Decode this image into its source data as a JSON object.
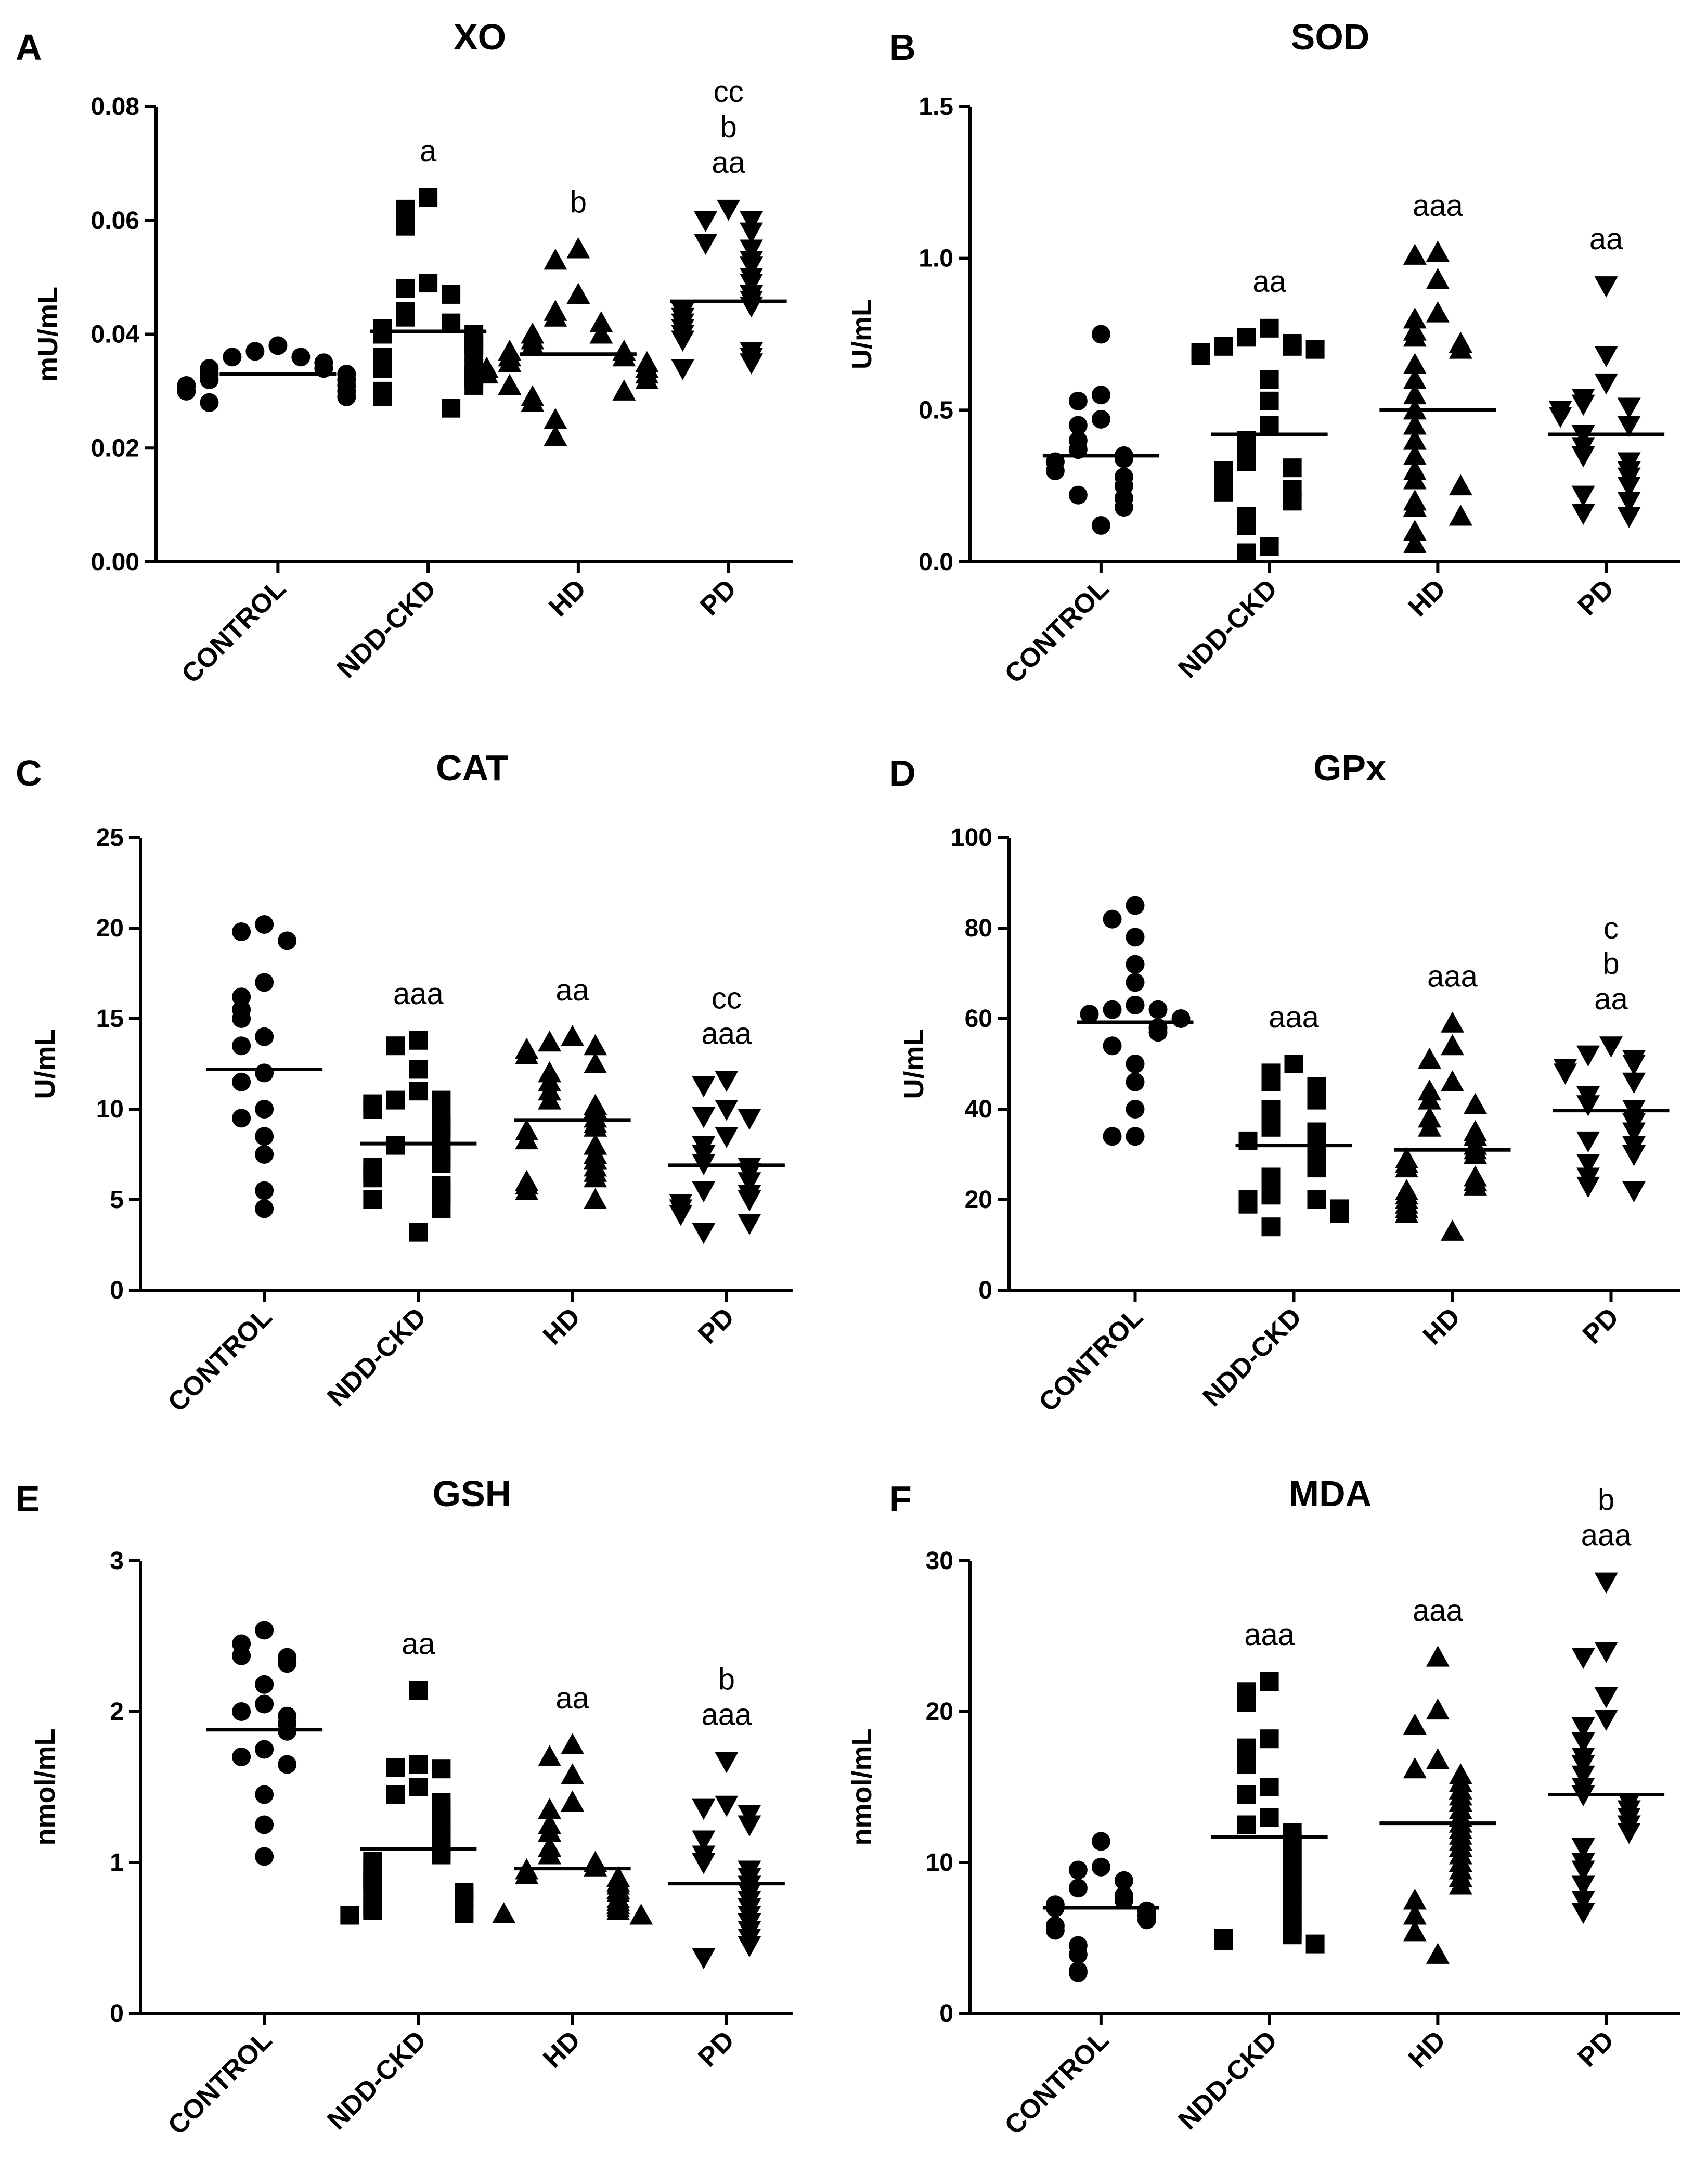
{
  "chart_data": [
    {
      "id": "A",
      "panel_letter": "A",
      "type": "scatter",
      "title": "XO",
      "ylabel": "mU/mL",
      "xlabel": "",
      "ylim": [
        0,
        0.08
      ],
      "yticks": [
        0,
        0.02,
        0.04,
        0.06,
        0.08
      ],
      "ytick_labels": [
        "0.00",
        "0.02",
        "0.04",
        "0.06",
        "0.08"
      ],
      "categories": [
        "CONTROL",
        "NDD-CKD",
        "HD",
        "PD"
      ],
      "series": [
        {
          "name": "CONTROL",
          "marker": "circle",
          "values": [
            0.038,
            0.037,
            0.036,
            0.036,
            0.035,
            0.034,
            0.034,
            0.033,
            0.033,
            0.032,
            0.032,
            0.031,
            0.031,
            0.03,
            0.03,
            0.029,
            0.028
          ],
          "mean": 0.033,
          "annotations": []
        },
        {
          "name": "NDD-CKD",
          "marker": "square",
          "values": [
            0.064,
            0.062,
            0.059,
            0.049,
            0.048,
            0.047,
            0.044,
            0.043,
            0.042,
            0.041,
            0.04,
            0.04,
            0.039,
            0.038,
            0.037,
            0.036,
            0.035,
            0.034,
            0.034,
            0.033,
            0.032,
            0.031,
            0.03,
            0.029,
            0.027
          ],
          "mean": 0.0405,
          "annotations": [
            "a"
          ]
        },
        {
          "name": "HD",
          "marker": "triangle-up",
          "values": [
            0.055,
            0.053,
            0.047,
            0.044,
            0.043,
            0.042,
            0.04,
            0.04,
            0.039,
            0.038,
            0.037,
            0.037,
            0.036,
            0.036,
            0.035,
            0.035,
            0.034,
            0.034,
            0.033,
            0.033,
            0.032,
            0.031,
            0.03,
            0.029,
            0.028,
            0.025,
            0.022
          ],
          "mean": 0.0365,
          "annotations": [
            "b"
          ]
        },
        {
          "name": "PD",
          "marker": "triangle-down",
          "values": [
            0.062,
            0.06,
            0.06,
            0.058,
            0.056,
            0.055,
            0.053,
            0.052,
            0.05,
            0.049,
            0.047,
            0.046,
            0.045,
            0.044,
            0.043,
            0.042,
            0.041,
            0.04,
            0.039,
            0.037,
            0.036,
            0.035,
            0.034
          ],
          "mean": 0.0458,
          "annotations": [
            "cc",
            "b",
            "aa"
          ]
        }
      ]
    },
    {
      "id": "B",
      "panel_letter": "B",
      "type": "scatter",
      "title": "SOD",
      "ylabel": "U/mL",
      "xlabel": "",
      "ylim": [
        0,
        1.5
      ],
      "yticks": [
        0,
        0.5,
        1.0,
        1.5
      ],
      "ytick_labels": [
        "0.0",
        "0.5",
        "1.0",
        "1.5"
      ],
      "categories": [
        "CONTROL",
        "NDD-CKD",
        "HD",
        "PD"
      ],
      "series": [
        {
          "name": "CONTROL",
          "marker": "circle",
          "values": [
            0.75,
            0.55,
            0.53,
            0.47,
            0.45,
            0.4,
            0.37,
            0.35,
            0.34,
            0.33,
            0.3,
            0.28,
            0.25,
            0.22,
            0.21,
            0.18,
            0.12
          ],
          "mean": 0.35,
          "annotations": []
        },
        {
          "name": "NDD-CKD",
          "marker": "square",
          "values": [
            0.77,
            0.74,
            0.72,
            0.71,
            0.71,
            0.7,
            0.69,
            0.68,
            0.6,
            0.53,
            0.45,
            0.4,
            0.35,
            0.33,
            0.31,
            0.3,
            0.28,
            0.26,
            0.24,
            0.23,
            0.2,
            0.15,
            0.12,
            0.05,
            0.03
          ],
          "mean": 0.42,
          "annotations": [
            "aa"
          ]
        },
        {
          "name": "HD",
          "marker": "triangle-up",
          "values": [
            1.02,
            1.01,
            0.93,
            0.82,
            0.8,
            0.76,
            0.74,
            0.72,
            0.7,
            0.65,
            0.6,
            0.55,
            0.5,
            0.45,
            0.4,
            0.35,
            0.3,
            0.27,
            0.25,
            0.2,
            0.18,
            0.15,
            0.1,
            0.06
          ],
          "mean": 0.5,
          "annotations": [
            "aaa"
          ]
        },
        {
          "name": "PD",
          "marker": "triangle-down",
          "values": [
            0.91,
            0.68,
            0.59,
            0.54,
            0.52,
            0.51,
            0.5,
            0.48,
            0.45,
            0.42,
            0.38,
            0.35,
            0.33,
            0.3,
            0.28,
            0.25,
            0.22,
            0.2,
            0.16,
            0.15
          ],
          "mean": 0.42,
          "annotations": [
            "aa"
          ]
        }
      ]
    },
    {
      "id": "C",
      "panel_letter": "C",
      "type": "scatter",
      "title": "CAT",
      "ylabel": "U/mL",
      "xlabel": "",
      "ylim": [
        0,
        25
      ],
      "yticks": [
        0,
        5,
        10,
        15,
        20,
        25
      ],
      "ytick_labels": [
        "0",
        "5",
        "10",
        "15",
        "20",
        "25"
      ],
      "categories": [
        "CONTROL",
        "NDD-CKD",
        "HD",
        "PD"
      ],
      "series": [
        {
          "name": "CONTROL",
          "marker": "circle",
          "values": [
            20.2,
            19.8,
            19.3,
            17.0,
            16.2,
            15.5,
            15.0,
            14.0,
            13.5,
            12.0,
            11.5,
            10.0,
            9.5,
            8.5,
            7.5,
            5.5,
            4.5
          ],
          "mean": 12.2,
          "annotations": []
        },
        {
          "name": "NDD-CKD",
          "marker": "square",
          "values": [
            13.8,
            13.5,
            12.2,
            11.0,
            10.5,
            10.5,
            10.3,
            10.0,
            9.5,
            9.2,
            9.0,
            8.5,
            8.0,
            7.6,
            7.3,
            7.0,
            6.8,
            6.5,
            6.2,
            5.8,
            5.5,
            5.2,
            5.0,
            4.5,
            3.2
          ],
          "mean": 8.1,
          "annotations": [
            "aaa"
          ]
        },
        {
          "name": "HD",
          "marker": "triangle-up",
          "values": [
            14.0,
            13.7,
            13.5,
            13.3,
            13.0,
            12.5,
            12.0,
            11.5,
            11.0,
            10.5,
            10.2,
            10.0,
            9.5,
            9.2,
            9.0,
            8.8,
            8.3,
            8.0,
            7.5,
            7.2,
            6.8,
            6.5,
            6.2,
            6.0,
            5.8,
            5.5,
            5.0
          ],
          "mean": 9.4,
          "annotations": [
            "aa"
          ]
        },
        {
          "name": "PD",
          "marker": "triangle-down",
          "values": [
            11.6,
            11.3,
            10.0,
            9.6,
            9.5,
            8.5,
            8.0,
            7.5,
            7.0,
            6.8,
            6.5,
            6.0,
            5.5,
            5.3,
            5.0,
            4.8,
            4.5,
            4.2,
            3.7,
            3.2
          ],
          "mean": 6.9,
          "annotations": [
            "cc",
            "aaa"
          ]
        }
      ]
    },
    {
      "id": "D",
      "panel_letter": "D",
      "type": "scatter",
      "title": "GPx",
      "ylabel": "U/mL",
      "xlabel": "",
      "ylim": [
        0,
        100
      ],
      "yticks": [
        0,
        20,
        40,
        60,
        80,
        100
      ],
      "ytick_labels": [
        "0",
        "20",
        "40",
        "60",
        "80",
        "100"
      ],
      "categories": [
        "CONTROL",
        "NDD-CKD",
        "HD",
        "PD"
      ],
      "series": [
        {
          "name": "CONTROL",
          "marker": "circle",
          "values": [
            85,
            82,
            78,
            72,
            68,
            63,
            62,
            62,
            61,
            60,
            58,
            57,
            54,
            50,
            46,
            40,
            34,
            34
          ],
          "mean": 59.2,
          "annotations": []
        },
        {
          "name": "NDD-CKD",
          "marker": "square",
          "values": [
            50,
            48,
            46,
            45,
            44,
            42,
            40,
            38,
            36,
            35,
            34,
            33,
            31,
            30,
            29,
            27,
            25,
            23,
            21,
            20,
            20,
            19,
            18,
            17,
            14
          ],
          "mean": 32.0,
          "annotations": [
            "aaa"
          ]
        },
        {
          "name": "HD",
          "marker": "triangle-up",
          "values": [
            59,
            54,
            51,
            46,
            44,
            42,
            41,
            38,
            36,
            35,
            34,
            32,
            31,
            30,
            29,
            28,
            27,
            25,
            24,
            23,
            22,
            21,
            20,
            19,
            18,
            17,
            13
          ],
          "mean": 31.0,
          "annotations": [
            "aaa"
          ]
        },
        {
          "name": "PD",
          "marker": "triangle-down",
          "values": [
            54,
            52,
            51,
            50,
            49,
            48,
            46,
            43,
            41,
            40,
            38,
            37,
            35,
            33,
            32,
            30,
            28,
            25,
            23,
            22
          ],
          "mean": 39.7,
          "annotations": [
            "c",
            "b",
            "aa"
          ]
        }
      ]
    },
    {
      "id": "E",
      "panel_letter": "E",
      "type": "scatter",
      "title": "GSH",
      "ylabel": "nmol/mL",
      "xlabel": "",
      "ylim": [
        0,
        3
      ],
      "yticks": [
        0,
        1,
        2,
        3
      ],
      "ytick_labels": [
        "0",
        "1",
        "2",
        "3"
      ],
      "categories": [
        "CONTROL",
        "NDD-CKD",
        "HD",
        "PD"
      ],
      "series": [
        {
          "name": "CONTROL",
          "marker": "circle",
          "values": [
            2.54,
            2.45,
            2.37,
            2.36,
            2.32,
            2.18,
            2.05,
            2.0,
            1.97,
            1.92,
            1.87,
            1.75,
            1.7,
            1.65,
            1.45,
            1.25,
            1.04
          ],
          "mean": 1.88,
          "annotations": []
        },
        {
          "name": "NDD-CKD",
          "marker": "square",
          "values": [
            2.14,
            1.65,
            1.63,
            1.62,
            1.5,
            1.45,
            1.4,
            1.35,
            1.3,
            1.26,
            1.22,
            1.18,
            1.12,
            1.08,
            1.05,
            1.01,
            0.97,
            0.94,
            0.9,
            0.87,
            0.85,
            0.82,
            0.8,
            0.76,
            0.72,
            0.7,
            0.68,
            0.66,
            0.65
          ],
          "mean": 1.09,
          "annotations": [
            "aa"
          ]
        },
        {
          "name": "HD",
          "marker": "triangle-up",
          "values": [
            1.78,
            1.7,
            1.58,
            1.4,
            1.35,
            1.25,
            1.2,
            1.1,
            1.05,
            1.0,
            0.97,
            0.95,
            0.92,
            0.9,
            0.87,
            0.85,
            0.82,
            0.8,
            0.76,
            0.74,
            0.72,
            0.7,
            0.68,
            0.66,
            0.65
          ],
          "mean": 0.96,
          "annotations": [
            "aa"
          ]
        },
        {
          "name": "PD",
          "marker": "triangle-down",
          "values": [
            1.67,
            1.38,
            1.36,
            1.32,
            1.25,
            1.15,
            1.05,
            1.0,
            0.95,
            0.9,
            0.85,
            0.8,
            0.75,
            0.7,
            0.65,
            0.6,
            0.55,
            0.5,
            0.45,
            0.37
          ],
          "mean": 0.86,
          "annotations": [
            "b",
            "aaa"
          ]
        }
      ]
    },
    {
      "id": "F",
      "panel_letter": "F",
      "type": "scatter",
      "title": "MDA",
      "ylabel": "nmol/mL",
      "xlabel": "",
      "ylim": [
        0,
        30
      ],
      "yticks": [
        0,
        10,
        20,
        30
      ],
      "ytick_labels": [
        "0",
        "10",
        "20",
        "30"
      ],
      "categories": [
        "CONTROL",
        "NDD-CKD",
        "HD",
        "PD"
      ],
      "series": [
        {
          "name": "CONTROL",
          "marker": "circle",
          "values": [
            11.4,
            9.7,
            9.5,
            8.8,
            8.3,
            7.8,
            7.5,
            7.2,
            7.0,
            6.8,
            6.5,
            6.2,
            5.8,
            5.5,
            4.5,
            3.9,
            2.8,
            2.7
          ],
          "mean": 7.0,
          "annotations": []
        },
        {
          "name": "NDD-CKD",
          "marker": "square",
          "values": [
            22.0,
            21.3,
            20.6,
            18.2,
            17.6,
            16.5,
            15.0,
            14.5,
            13.0,
            12.5,
            12.0,
            11.5,
            11.0,
            10.5,
            10.0,
            9.5,
            9.0,
            8.5,
            8.0,
            7.5,
            7.0,
            6.5,
            6.0,
            5.5,
            5.2,
            5.0,
            4.8,
            4.6
          ],
          "mean": 11.7,
          "annotations": [
            "aaa"
          ]
        },
        {
          "name": "HD",
          "marker": "triangle-up",
          "values": [
            23.6,
            20.1,
            19.1,
            16.8,
            16.2,
            15.8,
            15.3,
            14.8,
            14.4,
            14.0,
            13.5,
            13.0,
            12.6,
            12.2,
            11.8,
            11.4,
            11.0,
            10.5,
            10.0,
            9.5,
            9.0,
            8.5,
            7.5,
            6.5,
            5.4,
            3.9
          ],
          "mean": 12.6,
          "annotations": [
            "aaa"
          ]
        },
        {
          "name": "PD",
          "marker": "triangle-down",
          "values": [
            28.6,
            24.0,
            23.6,
            21.0,
            19.5,
            19.0,
            18.0,
            17.0,
            16.5,
            15.8,
            15.0,
            14.5,
            14.0,
            13.5,
            13.0,
            12.5,
            12.0,
            11.0,
            10.0,
            9.5,
            8.5,
            7.5,
            6.7
          ],
          "mean": 14.5,
          "annotations": [
            "b",
            "aaa"
          ]
        }
      ]
    }
  ]
}
